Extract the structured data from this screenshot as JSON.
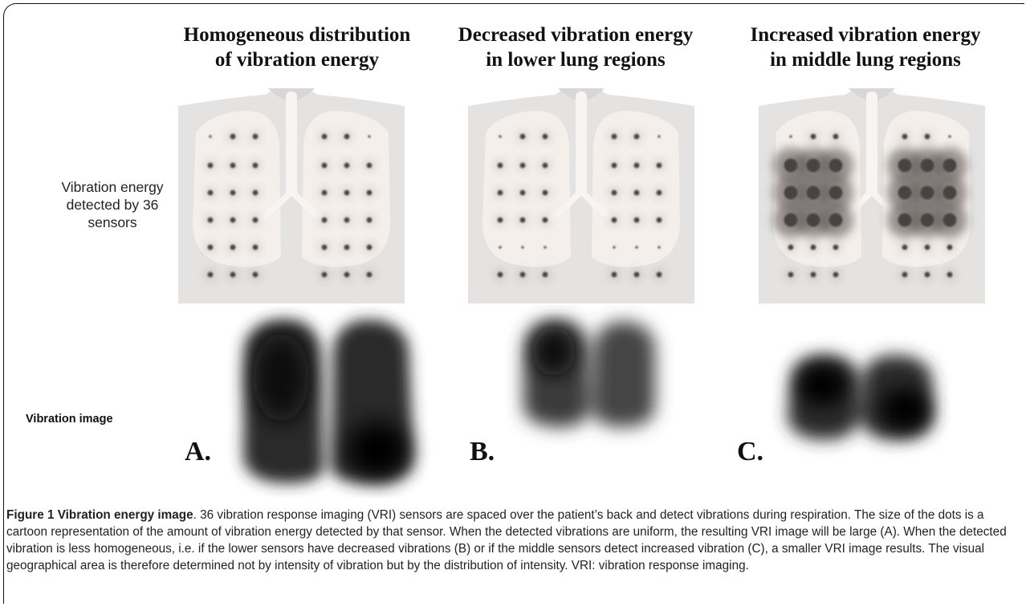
{
  "panels": [
    {
      "letter": "A.",
      "title_line1": "Homogeneous distribution",
      "title_line2": "of vibration energy",
      "sensor_levels": [
        [
          1,
          2,
          2,
          2,
          2,
          1
        ],
        [
          2,
          2,
          2,
          2,
          2,
          2
        ],
        [
          2,
          2,
          2,
          2,
          2,
          2
        ],
        [
          2,
          2,
          2,
          2,
          2,
          2
        ],
        [
          2,
          2,
          2,
          2,
          2,
          2
        ],
        [
          2,
          2,
          2,
          2,
          2,
          2
        ]
      ],
      "vri_image": "large"
    },
    {
      "letter": "B.",
      "title_line1": "Decreased vibration energy",
      "title_line2": "in lower lung regions",
      "sensor_levels": [
        [
          1,
          2,
          2,
          2,
          2,
          1
        ],
        [
          2,
          2,
          2,
          2,
          2,
          2
        ],
        [
          2,
          2,
          2,
          2,
          2,
          2
        ],
        [
          2,
          2,
          2,
          2,
          2,
          2
        ],
        [
          1,
          1,
          1,
          1,
          1,
          1
        ],
        [
          2,
          2,
          2,
          2,
          2,
          2
        ]
      ],
      "vri_image": "smaller"
    },
    {
      "letter": "C.",
      "title_line1": "Increased vibration energy",
      "title_line2": "in middle lung regions",
      "sensor_levels": [
        [
          1,
          2,
          2,
          2,
          2,
          1
        ],
        [
          4,
          4,
          4,
          4,
          4,
          4
        ],
        [
          4,
          4,
          4,
          4,
          4,
          4
        ],
        [
          4,
          4,
          4,
          4,
          4,
          4
        ],
        [
          2,
          2,
          2,
          2,
          2,
          2
        ],
        [
          2,
          2,
          2,
          2,
          2,
          2
        ]
      ],
      "vri_image": "smaller"
    }
  ],
  "row_labels": {
    "sensors": [
      "Vibration energy",
      "detected by 36",
      "sensors"
    ],
    "vibration_image": "Vibration image"
  },
  "caption": {
    "title": "Figure 1 Vibration energy image",
    "text": ". 36 vibration response imaging (VRI) sensors are spaced over the patient’s back and detect vibrations during respiration. The size of the dots is a cartoon representation of the amount of vibration energy detected by that sensor. When the detected vibrations are uniform, the resulting VRI image will be large (A). When the detected vibration is less homogeneous, i.e. if the lower sensors have decreased vibrations (B) or if the middle sensors detect increased vibration (C), a smaller VRI image results. The visual geographical area is therefore determined not by intensity of vibration but by the distribution of intensity. VRI: vibration response imaging."
  },
  "colors": {
    "background": "#ffffff",
    "body_silhouette": "#e4e3e1",
    "lung": "#f5efec",
    "sensor_dot": "#4a4340",
    "vri_dark": "#0b0b0b"
  }
}
